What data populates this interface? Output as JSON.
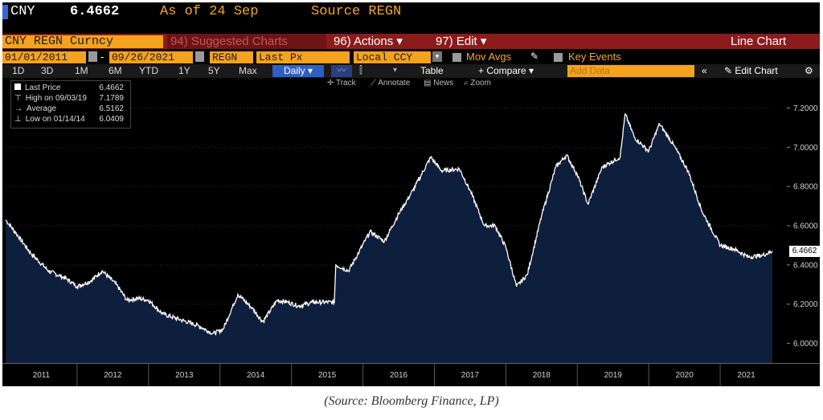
{
  "header": {
    "ticker": "CNY",
    "price": "6.4662",
    "as_of": "As of 24 Sep",
    "source": "Source REGN"
  },
  "toolbar1": {
    "security": "CNY REGN Curncy",
    "suggested": "94) Suggested Charts",
    "actions": "96) Actions ▾",
    "edit": "97) Edit ▾",
    "chart_type": "Line Chart"
  },
  "toolbar2": {
    "start_date": "01/01/2011",
    "end_date": "09/26/2021",
    "source_field": "REGN",
    "field": "Last Px",
    "currency": "Local CCY",
    "mov_avgs": "Mov Avgs",
    "key_events": "Key Events"
  },
  "toolbar3": {
    "ranges": [
      "1D",
      "3D",
      "1M",
      "6M",
      "YTD",
      "1Y",
      "5Y",
      "Max"
    ],
    "frequency": "Daily ▾",
    "table": "Table",
    "compare": "+ Compare ▾",
    "add_data": "Add Data",
    "edit_chart": "Edit Chart"
  },
  "toolbar4": {
    "track": "Track",
    "annotate": "Annotate",
    "news": "News",
    "zoom": "Zoom"
  },
  "legend": {
    "rows": [
      {
        "label": "Last Price",
        "value": "6.4662"
      },
      {
        "label": "High on 09/03/19",
        "value": "7.1789"
      },
      {
        "label": "Average",
        "value": "6.5162"
      },
      {
        "label": "Low on 01/14/14",
        "value": "6.0409"
      }
    ]
  },
  "last_value_tag": "6.4662",
  "caption": "(Source: Bloomberg Finance, LP)",
  "colors": {
    "amber": "#f5a623",
    "field_bg": "#f5a21e",
    "red_bar": "#8c1c1c",
    "area_fill": "#0e1e3d",
    "line": "#ffffff"
  },
  "chart_data": {
    "type": "area",
    "x_start": 2011.0,
    "x_end": 2021.73,
    "xlim": [
      2011.0,
      2021.73
    ],
    "ylim": [
      5.9,
      7.28
    ],
    "y_ticks": [
      "6.0000",
      "6.2000",
      "6.4000",
      "6.6000",
      "6.8000",
      "7.0000",
      "7.2000"
    ],
    "y_tick_values": [
      6.0,
      6.2,
      6.4,
      6.6,
      6.8,
      7.0,
      7.2
    ],
    "x_tick_labels": [
      "2011",
      "2012",
      "2013",
      "2014",
      "2015",
      "2016",
      "2017",
      "2018",
      "2019",
      "2020",
      "2021"
    ],
    "series": [
      {
        "x": [
          2011.0,
          2011.15,
          2011.35,
          2011.6,
          2011.85,
          2012.0,
          2012.2,
          2012.35,
          2012.55,
          2012.7,
          2012.85,
          2013.0,
          2013.2,
          2013.45,
          2013.7,
          2013.9,
          2014.04,
          2014.25,
          2014.45,
          2014.6,
          2014.8,
          2014.95,
          2015.1,
          2015.3,
          2015.6,
          2015.62,
          2015.8,
          2015.95,
          2016.1,
          2016.3,
          2016.5,
          2016.7,
          2016.95,
          2017.1,
          2017.35,
          2017.5,
          2017.7,
          2017.85,
          2018.0,
          2018.15,
          2018.3,
          2018.5,
          2018.7,
          2018.85,
          2019.0,
          2019.15,
          2019.35,
          2019.6,
          2019.67,
          2019.8,
          2020.0,
          2020.15,
          2020.35,
          2020.55,
          2020.75,
          2021.0,
          2021.2,
          2021.4,
          2021.6,
          2021.73
        ],
        "y": [
          6.63,
          6.56,
          6.46,
          6.37,
          6.33,
          6.29,
          6.32,
          6.37,
          6.3,
          6.22,
          6.23,
          6.22,
          6.15,
          6.12,
          6.09,
          6.05,
          6.07,
          6.25,
          6.18,
          6.11,
          6.22,
          6.21,
          6.19,
          6.21,
          6.21,
          6.4,
          6.37,
          6.47,
          6.57,
          6.52,
          6.66,
          6.78,
          6.95,
          6.88,
          6.89,
          6.78,
          6.6,
          6.6,
          6.49,
          6.29,
          6.35,
          6.65,
          6.9,
          6.96,
          6.86,
          6.71,
          6.9,
          6.95,
          7.17,
          7.05,
          6.98,
          7.12,
          7.01,
          6.88,
          6.67,
          6.5,
          6.48,
          6.44,
          6.45,
          6.47
        ]
      }
    ]
  }
}
